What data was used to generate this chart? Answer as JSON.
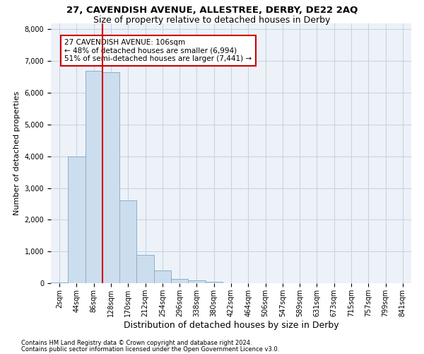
{
  "title": "27, CAVENDISH AVENUE, ALLESTREE, DERBY, DE22 2AQ",
  "subtitle": "Size of property relative to detached houses in Derby",
  "xlabel": "Distribution of detached houses by size in Derby",
  "ylabel": "Number of detached properties",
  "footnote1": "Contains HM Land Registry data © Crown copyright and database right 2024.",
  "footnote2": "Contains public sector information licensed under the Open Government Licence v3.0.",
  "bar_labels": [
    "2sqm",
    "44sqm",
    "86sqm",
    "128sqm",
    "170sqm",
    "212sqm",
    "254sqm",
    "296sqm",
    "338sqm",
    "380sqm",
    "422sqm",
    "464sqm",
    "506sqm",
    "547sqm",
    "589sqm",
    "631sqm",
    "673sqm",
    "715sqm",
    "757sqm",
    "799sqm",
    "841sqm"
  ],
  "bar_values": [
    20,
    4000,
    6700,
    6650,
    2600,
    900,
    400,
    130,
    80,
    50,
    0,
    0,
    0,
    0,
    0,
    0,
    0,
    0,
    0,
    0,
    0
  ],
  "bar_color": "#ccdded",
  "bar_edgecolor": "#8ab0cc",
  "vline_x": 2.5,
  "vline_color": "#cc0000",
  "annotation_text": "27 CAVENDISH AVENUE: 106sqm\n← 48% of detached houses are smaller (6,994)\n51% of semi-detached houses are larger (7,441) →",
  "annotation_box_edgecolor": "#cc0000",
  "annotation_box_facecolor": "#ffffff",
  "ylim": [
    0,
    8200
  ],
  "yticks": [
    0,
    1000,
    2000,
    3000,
    4000,
    5000,
    6000,
    7000,
    8000
  ],
  "grid_color": "#c8d4e4",
  "background_color": "#edf2f8",
  "title_fontsize": 9.5,
  "subtitle_fontsize": 9,
  "xlabel_fontsize": 9,
  "ylabel_fontsize": 8,
  "tick_fontsize": 7,
  "footnote_fontsize": 6,
  "annotation_fontsize": 7.5
}
